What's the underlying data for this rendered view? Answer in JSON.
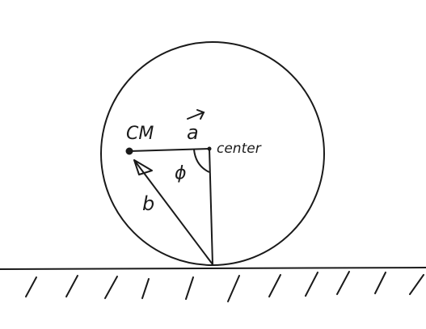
{
  "diagram": {
    "labels": {
      "cm": "CM",
      "accel": "a",
      "center": "center",
      "angle": "ϕ",
      "distance": "b"
    },
    "colors": {
      "ink": "#1a1a1a",
      "background": "#ffffff"
    }
  }
}
